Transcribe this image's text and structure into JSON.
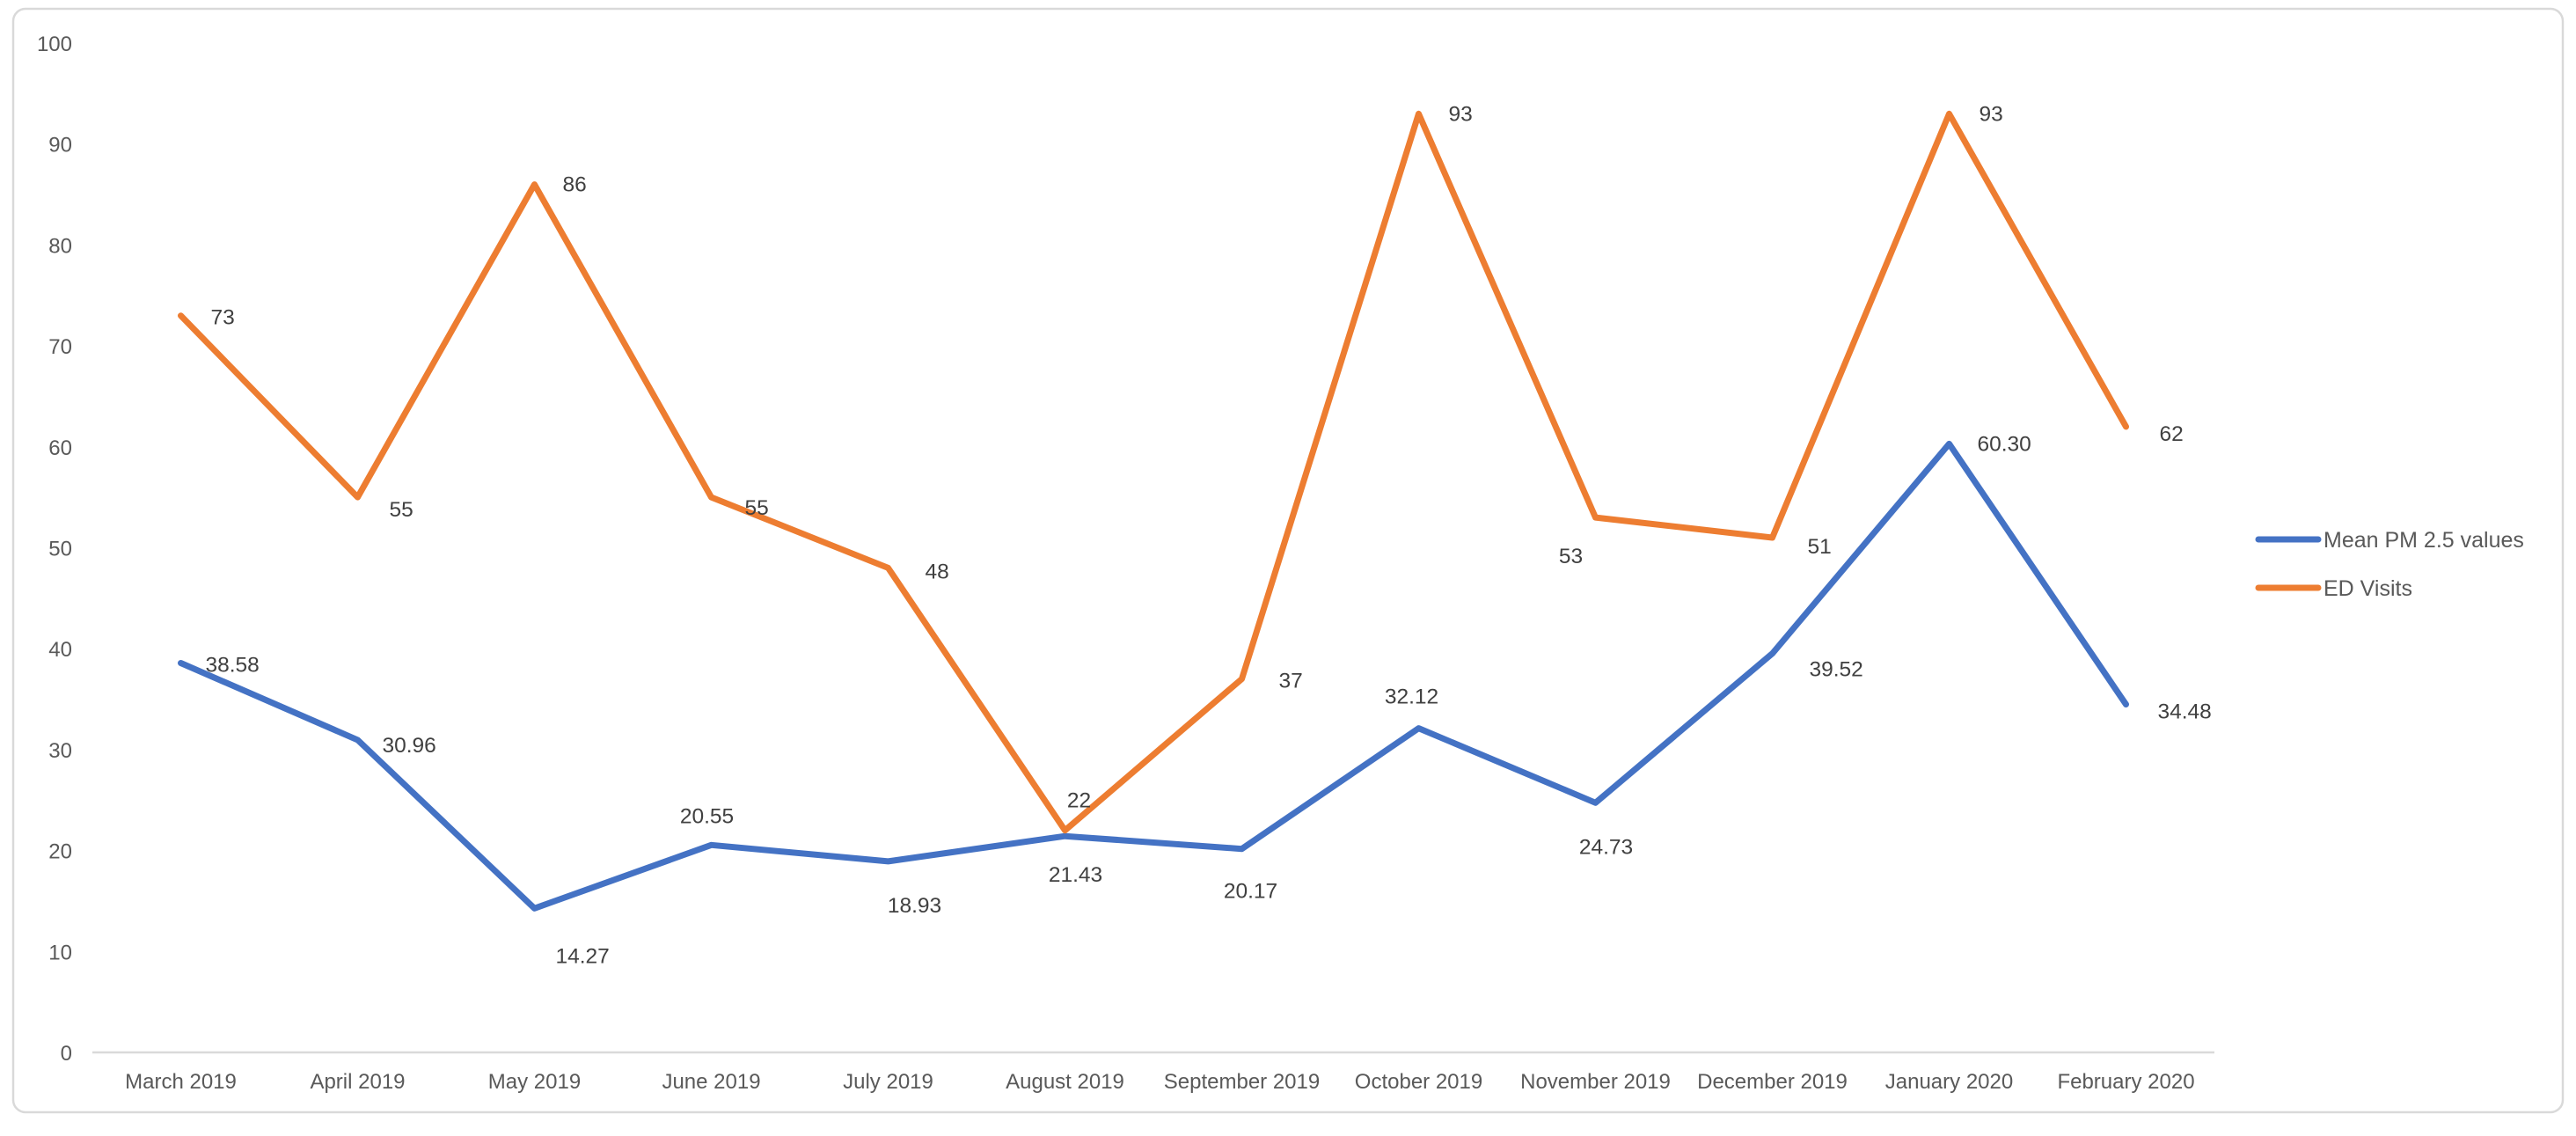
{
  "chart_data": {
    "type": "line",
    "title": "",
    "categories": [
      "March 2019",
      "April 2019",
      "May 2019",
      "June 2019",
      "July 2019",
      "August 2019",
      "September 2019",
      "October 2019",
      "November 2019",
      "December 2019",
      "January 2020",
      "February 2020"
    ],
    "series": [
      {
        "name": "Mean PM 2.5 values",
        "color": "#4472C4",
        "values": [
          38.58,
          30.96,
          14.27,
          20.55,
          18.93,
          21.43,
          20.17,
          32.12,
          24.73,
          39.52,
          60.3,
          34.48
        ],
        "labels": [
          "38.58",
          "30.96",
          "14.27",
          "20.55",
          "18.93",
          "21.43",
          "20.17",
          "32.12",
          "24.73",
          "39.52",
          "60.30",
          "34.48"
        ]
      },
      {
        "name": "ED Visits",
        "color": "#ED7D31",
        "values": [
          73,
          55,
          86,
          55,
          48,
          22,
          37,
          93,
          53,
          51,
          93,
          62
        ],
        "labels": [
          "73",
          "55",
          "86",
          "55",
          "48",
          "22",
          "37",
          "93",
          "53",
          "51",
          "93",
          "62"
        ]
      }
    ],
    "xlabel": "",
    "ylabel": "",
    "ylim": [
      0,
      100
    ],
    "ytick_step": 10,
    "ytick_labels": [
      "0",
      "10",
      "20",
      "30",
      "40",
      "50",
      "60",
      "70",
      "80",
      "90",
      "100"
    ],
    "grid": false,
    "legend_position": "right",
    "legend_entries": [
      "Mean PM 2.5 values",
      "ED Visits"
    ],
    "colors": {
      "axis_text": "#595959",
      "data_label_text": "#404040",
      "legend_text": "#595959",
      "axis_line": "#d9d9d9",
      "frame_border": "#d9d9d9",
      "background": "#ffffff"
    }
  }
}
